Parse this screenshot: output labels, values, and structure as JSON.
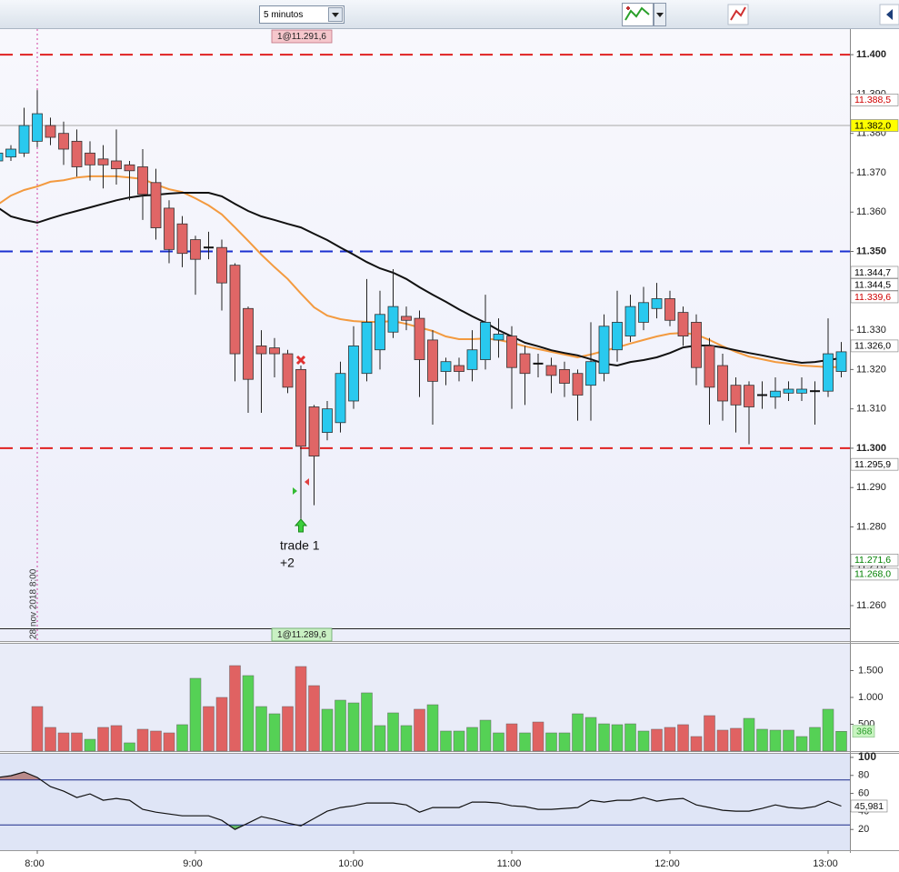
{
  "toolbar": {
    "timeframe": "5 minutos"
  },
  "chart_data": [
    {
      "type": "candlestick",
      "categories": [
        null,
        null,
        null,
        "8:00",
        null,
        null,
        null,
        null,
        null,
        null,
        null,
        null,
        null,
        null,
        null,
        "9:00",
        null,
        null,
        null,
        null,
        null,
        null,
        null,
        null,
        null,
        null,
        null,
        "10:00",
        null,
        null,
        null,
        null,
        null,
        null,
        null,
        null,
        null,
        null,
        null,
        "11:00",
        null,
        null,
        null,
        null,
        null,
        null,
        null,
        null,
        null,
        null,
        null,
        "12:00",
        null,
        null,
        null,
        null,
        null,
        null,
        null,
        null,
        null,
        null,
        null,
        "13:00",
        null
      ],
      "open": [
        11373,
        11374,
        11375,
        11378,
        11382,
        11380,
        11378,
        11375,
        11373.5,
        11373,
        11372,
        11371.5,
        11367.5,
        11361,
        11357,
        11353,
        11351,
        11351,
        11346.5,
        11335.5,
        11326,
        11325.5,
        11324,
        11320,
        11310.5,
        11304,
        11306.5,
        11312,
        11319,
        11325,
        11329.5,
        11333.5,
        11333,
        11327.5,
        11319.5,
        11321,
        11320,
        11322.5,
        11327.5,
        11328.5,
        11324,
        11321.5,
        11321,
        11320,
        11319,
        11316,
        11319,
        11325,
        11328.5,
        11332,
        11335.5,
        11338,
        11334.5,
        11332,
        11326,
        11321,
        11316,
        11316,
        11313.5,
        11313,
        11314,
        11314,
        11314.5,
        11314.5,
        11319.5
      ],
      "high": [
        11376,
        11377,
        11386.5,
        11391,
        11384,
        11383,
        11381,
        11378,
        11377,
        11381,
        11373,
        11376,
        11371,
        11363,
        11359,
        11354,
        11355,
        11353,
        11347,
        11336,
        11330,
        11328,
        11325,
        11321,
        11311,
        11312,
        11322,
        11331,
        11343,
        11340,
        11345.5,
        11336,
        11335,
        11330,
        11323,
        11323,
        11330,
        11339,
        11333,
        11331,
        11326,
        11324,
        11323,
        11322,
        11320,
        11332,
        11334,
        11340,
        11339,
        11341,
        11342,
        11340,
        11336,
        11334,
        11328,
        11324,
        11318,
        11317,
        11317,
        11318,
        11317,
        11318,
        11317,
        11333,
        11327
      ],
      "low": [
        11372,
        11373,
        11374,
        11376.5,
        11377,
        11372,
        11369,
        11368,
        11366,
        11367,
        11363,
        11358,
        11353,
        11347,
        11346,
        11339,
        11348,
        11335,
        11317,
        11309,
        11309,
        11318,
        11314,
        11282,
        11285.5,
        11302,
        11304,
        11310,
        11317,
        11320,
        11328,
        11330,
        11313,
        11306,
        11316,
        11317,
        11317,
        11320,
        11323,
        11310,
        11311,
        11318,
        11314,
        11313,
        11307,
        11307,
        11317,
        11322,
        11327,
        11330,
        11333,
        11331,
        11326,
        11316,
        11306,
        11307,
        11304,
        11301,
        11310,
        11310,
        11312,
        11312,
        11306,
        11313,
        11318
      ],
      "close": [
        11375,
        11376,
        11382,
        11385,
        11379,
        11376,
        11371.5,
        11372,
        11372,
        11371,
        11370.5,
        11364.5,
        11356,
        11350.5,
        11349.5,
        11348,
        11351,
        11342,
        11324,
        11317.5,
        11324,
        11324,
        11315.5,
        11300.5,
        11298,
        11310,
        11319,
        11326,
        11332,
        11334,
        11336,
        11332.5,
        11322.5,
        11317,
        11322,
        11319.5,
        11325,
        11332,
        11329,
        11320.5,
        11319,
        11321.5,
        11318.5,
        11316.5,
        11313.5,
        11322,
        11331,
        11332,
        11336,
        11337,
        11338,
        11332.5,
        11328.5,
        11320.5,
        11315.5,
        11312,
        11311,
        11310.5,
        11313.5,
        11314.5,
        11315,
        11315,
        11314.5,
        11324,
        11324.5
      ],
      "up_color": "#29c9ef",
      "down_color": "#e06666",
      "overlays": [
        {
          "color": "#f39a3f",
          "values": [
            11361.9,
            11364.2,
            11365.6,
            11366.5,
            11367.7,
            11368.1,
            11368.8,
            11369.1,
            11369.1,
            11369.1,
            11368.8,
            11368.4,
            11367.0,
            11365.8,
            11365.1,
            11363.5,
            11361.7,
            11359.4,
            11356.1,
            11352.7,
            11349.2,
            11346.0,
            11343.0,
            11339.3,
            11335.8,
            11333.7,
            11332.8,
            11332.3,
            11332.1,
            11332.1,
            11332.3,
            11331.6,
            11330.7,
            11329.8,
            11328.4,
            11327.7,
            11327.7,
            11327.9,
            11327.5,
            11326.8,
            11325.9,
            11325.2,
            11324.5,
            11323.8,
            11323.1,
            11323.8,
            11324.7,
            11325.6,
            11326.6,
            11327.5,
            11328.4,
            11329.1,
            11329.3,
            11328.9,
            11327.5,
            11325.9,
            11324.5,
            11323.3,
            11322.6,
            11321.9,
            11321.5,
            11321.0,
            11320.8,
            11320.6,
            11320.6
          ]
        },
        {
          "color": "#111111",
          "values": [
            11361.2,
            11358.9,
            11358.0,
            11357.3,
            11358.4,
            11359.4,
            11360.3,
            11361.2,
            11362.1,
            11363.0,
            11363.7,
            11364.2,
            11364.4,
            11364.7,
            11364.9,
            11364.9,
            11364.9,
            11364.0,
            11362.1,
            11360.3,
            11358.9,
            11358.0,
            11357.0,
            11356.1,
            11354.5,
            11352.9,
            11351.0,
            11349.2,
            11347.3,
            11345.7,
            11344.6,
            11343.0,
            11340.9,
            11339.0,
            11337.2,
            11335.3,
            11333.5,
            11331.9,
            11330.0,
            11328.4,
            11326.8,
            11325.9,
            11324.9,
            11324.2,
            11323.6,
            11322.6,
            11321.5,
            11321.0,
            11321.9,
            11322.4,
            11323.1,
            11324.2,
            11325.6,
            11326.1,
            11326.1,
            11325.6,
            11324.9,
            11324.2,
            11323.6,
            11322.9,
            11322.2,
            11321.7,
            11321.9,
            11322.4,
            11322.9
          ]
        }
      ],
      "ylim": [
        11251,
        11406.5
      ],
      "yticks": [
        {
          "value": 11400,
          "label": "11.400"
        },
        {
          "value": 11390,
          "label": "11.390"
        },
        {
          "value": 11380,
          "label": "11.380"
        },
        {
          "value": 11370,
          "label": "11.370"
        },
        {
          "value": 11360,
          "label": "11.360"
        },
        {
          "value": 11350,
          "label": "11.350"
        },
        {
          "value": 11340,
          "label": "11.340"
        },
        {
          "value": 11330,
          "label": "11.330"
        },
        {
          "value": 11320,
          "label": "11.320"
        },
        {
          "value": 11310,
          "label": "11.310"
        },
        {
          "value": 11300,
          "label": "11.300"
        },
        {
          "value": 11290,
          "label": "11.290"
        },
        {
          "value": 11280,
          "label": "11.280"
        },
        {
          "value": 11270,
          "label": "11.270"
        },
        {
          "value": 11260,
          "label": "11.260"
        }
      ],
      "hlines": [
        {
          "value": 11400,
          "color": "#e02020",
          "dashed": true
        },
        {
          "value": 11350,
          "color": "#1a2fd0",
          "dashed": true
        },
        {
          "value": 11300,
          "color": "#e02020",
          "dashed": true
        },
        {
          "value": 11382,
          "color": "#a8a8a8",
          "dashed": false
        }
      ],
      "price_tags": [
        {
          "value": 11388.5,
          "label": "11.388,5",
          "color": "#d00000",
          "bg": "#ffffff"
        },
        {
          "value": 11382,
          "label": "11.382,0",
          "color": "#000000",
          "bg": "#ffff00"
        },
        {
          "value": 11344.7,
          "label": "11.344,7",
          "color": "#000000",
          "bg": "#ffffff"
        },
        {
          "value": 11344.5,
          "label": "11.344,5",
          "color": "#000000",
          "bg": "#ffffff"
        },
        {
          "value": 11339.6,
          "label": "11.339,6",
          "color": "#d00000",
          "bg": "#ffffff"
        },
        {
          "value": 11326,
          "label": "11.326,0",
          "color": "#000000",
          "bg": "#ffffff"
        },
        {
          "value": 11295.9,
          "label": "11.295,9",
          "color": "#000000",
          "bg": "#ffffff"
        },
        {
          "value": 11271.6,
          "label": "11.271,6",
          "color": "#008000",
          "bg": "#ffffff"
        },
        {
          "value": 11268,
          "label": "11.268,0",
          "color": "#008000",
          "bg": "#ffffff"
        }
      ],
      "order_tags": [
        "1@11.291,6",
        "1@11.289,6"
      ],
      "date_label": "28 nov 2018 8:00",
      "annotations": [
        "trade 1",
        "+2"
      ]
    },
    {
      "type": "bar",
      "values": [
        null,
        null,
        null,
        830,
        441,
        339,
        339,
        220,
        441,
        475,
        153,
        407,
        373,
        339,
        492,
        1356,
        830,
        1000,
        1593,
        1407,
        830,
        695,
        830,
        1576,
        1220,
        780,
        949,
        898,
        1085,
        475,
        712,
        475,
        780,
        864,
        373,
        373,
        441,
        576,
        339,
        508,
        339,
        542,
        339,
        339,
        695,
        627,
        508,
        492,
        508,
        373,
        407,
        441,
        492,
        271,
        661,
        390,
        424,
        610,
        407,
        390,
        390,
        271,
        441,
        780,
        368
      ],
      "colors": [
        null,
        null,
        null,
        "#e06262",
        "#e06262",
        "#e06262",
        "#e06262",
        "#55d155",
        "#e06262",
        "#e06262",
        "#55d155",
        "#e06262",
        "#e06262",
        "#e06262",
        "#55d155",
        "#55d155",
        "#e06262",
        "#e06262",
        "#e06262",
        "#55d155",
        "#55d155",
        "#55d155",
        "#e06262",
        "#e06262",
        "#e06262",
        "#55d155",
        "#55d155",
        "#55d155",
        "#55d155",
        "#55d155",
        "#55d155",
        "#55d155",
        "#e06262",
        "#55d155",
        "#55d155",
        "#55d155",
        "#55d155",
        "#55d155",
        "#55d155",
        "#e06262",
        "#55d155",
        "#e06262",
        "#55d155",
        "#55d155",
        "#55d155",
        "#55d155",
        "#55d155",
        "#55d155",
        "#55d155",
        "#55d155",
        "#e06262",
        "#e06262",
        "#e06262",
        "#e06262",
        "#e06262",
        "#e06262",
        "#e06262",
        "#55d155",
        "#55d155",
        "#55d155",
        "#55d155",
        "#55d155",
        "#55d155",
        "#55d155",
        "#55d155"
      ],
      "ylim": [
        0,
        2000
      ],
      "yticks": [
        500,
        {
          "value": 1000,
          "label": "1.000"
        },
        {
          "value": 1500,
          "label": "1.500"
        }
      ]
    },
    {
      "type": "line",
      "values": [
        77.7,
        79.7,
        83.8,
        77.7,
        67.6,
        62.5,
        55.4,
        59.5,
        52.4,
        54.4,
        52.4,
        42.3,
        39.2,
        37.2,
        35.2,
        35.2,
        35.2,
        30.1,
        20.0,
        27.1,
        34.2,
        31.1,
        27.1,
        24.1,
        32.2,
        40.3,
        44.3,
        46.3,
        49.4,
        49.4,
        49.4,
        47.3,
        39.2,
        44.3,
        44.3,
        44.3,
        50.4,
        50.4,
        49.4,
        46.3,
        45.3,
        42.3,
        42.3,
        43.3,
        44.3,
        52.4,
        50.4,
        52.4,
        52.4,
        55.4,
        51.4,
        53.4,
        54.4,
        47.3,
        44.3,
        41.3,
        40.3,
        40.3,
        43.3,
        47.3,
        44.3,
        43.3,
        45.3,
        51.4,
        45.981
      ],
      "value_labels": [
        null,
        null,
        null,
        null,
        null,
        null,
        null,
        null,
        null,
        null,
        null,
        null,
        null,
        null,
        null,
        null,
        null,
        null,
        null,
        null,
        null,
        null,
        null,
        null,
        null,
        null,
        null,
        null,
        null,
        null,
        null,
        null,
        null,
        null,
        null,
        null,
        null,
        null,
        null,
        null,
        null,
        null,
        null,
        null,
        null,
        null,
        null,
        null,
        null,
        null,
        null,
        null,
        null,
        null,
        null,
        null,
        null,
        null,
        null,
        null,
        null,
        null,
        null,
        null,
        "45,981"
      ],
      "color": "#111111",
      "bands": [
        75,
        25
      ],
      "ylim": [
        -3,
        105
      ],
      "yticks": [
        20,
        40,
        60,
        80,
        100
      ]
    }
  ]
}
